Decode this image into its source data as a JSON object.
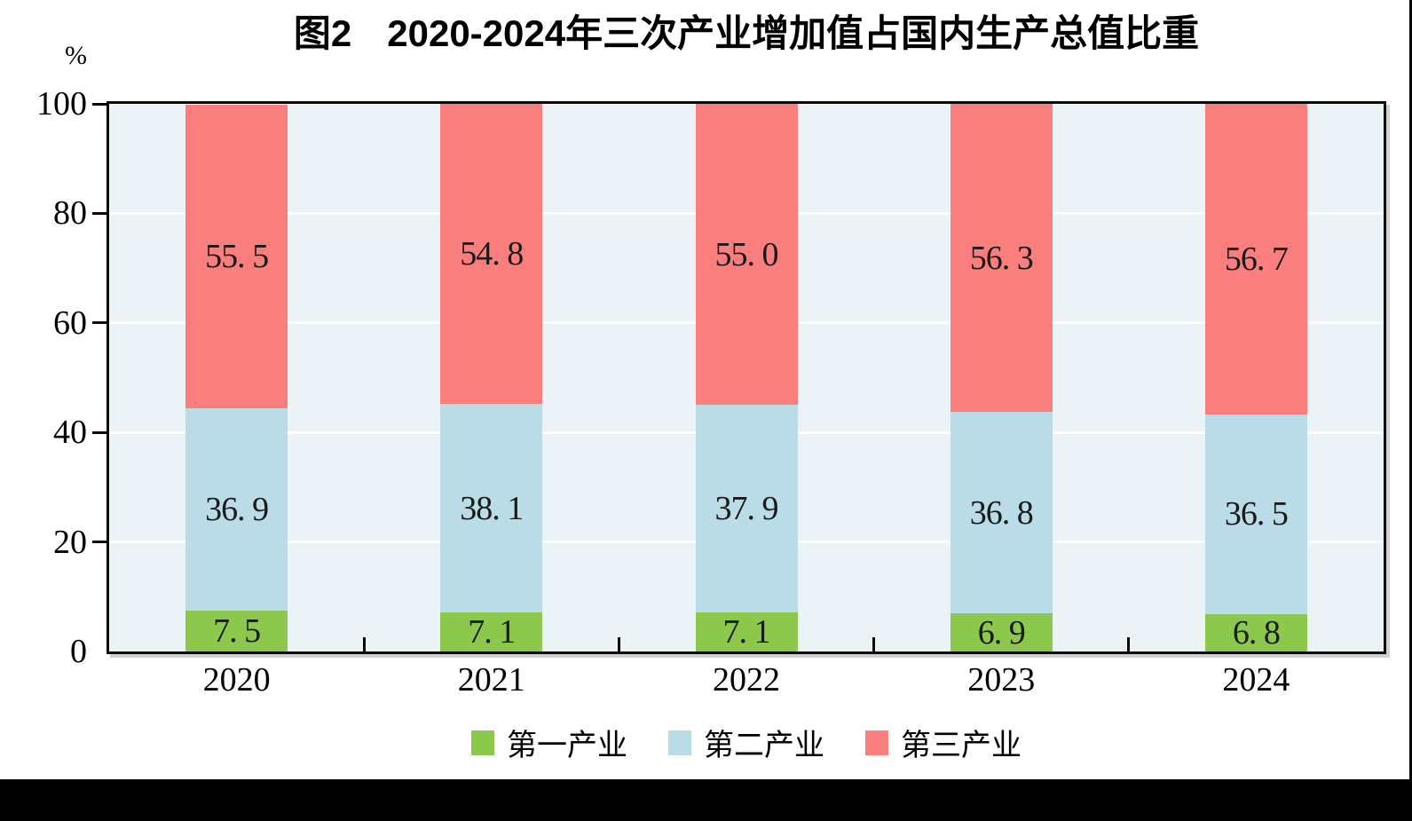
{
  "figure": {
    "figure_label": "图2",
    "title": "2020-2024年三次产业增加值占国内生产总值比重",
    "unit_label": "%"
  },
  "chart_data": {
    "type": "bar",
    "stacked": true,
    "title": "图2 2020-2024年三次产业增加值占国内生产总值比重",
    "unit": "%",
    "categories": [
      "2020",
      "2021",
      "2022",
      "2023",
      "2024"
    ],
    "series": [
      {
        "name": "第一产业",
        "color": "#8CC84B",
        "values": [
          7.5,
          7.1,
          7.1,
          6.9,
          6.8
        ],
        "labels": [
          "7. 5",
          "7. 1",
          "7. 1",
          "6. 9",
          "6. 8"
        ]
      },
      {
        "name": "第二产业",
        "color": "#B9DCE6",
        "values": [
          36.9,
          38.1,
          37.9,
          36.8,
          36.5
        ],
        "labels": [
          "36. 9",
          "38. 1",
          "37. 9",
          "36. 8",
          "36. 5"
        ]
      },
      {
        "name": "第三产业",
        "color": "#FA7E7E",
        "values": [
          55.5,
          54.8,
          55.0,
          56.3,
          56.7
        ],
        "labels": [
          "55. 5",
          "54. 8",
          "55. 0",
          "56. 3",
          "56. 7"
        ]
      }
    ],
    "ylim": [
      0,
      100
    ],
    "yticks": [
      0,
      20,
      40,
      60,
      80,
      100
    ],
    "ytick_labels": [
      "0",
      "20",
      "40",
      "60",
      "80",
      "100"
    ],
    "grid": "horizontal",
    "grid_color": "#FFFFFF",
    "plot_bg": "#ECF3F7",
    "label_color": "#1A1A1A",
    "legend_position": "bottom"
  }
}
